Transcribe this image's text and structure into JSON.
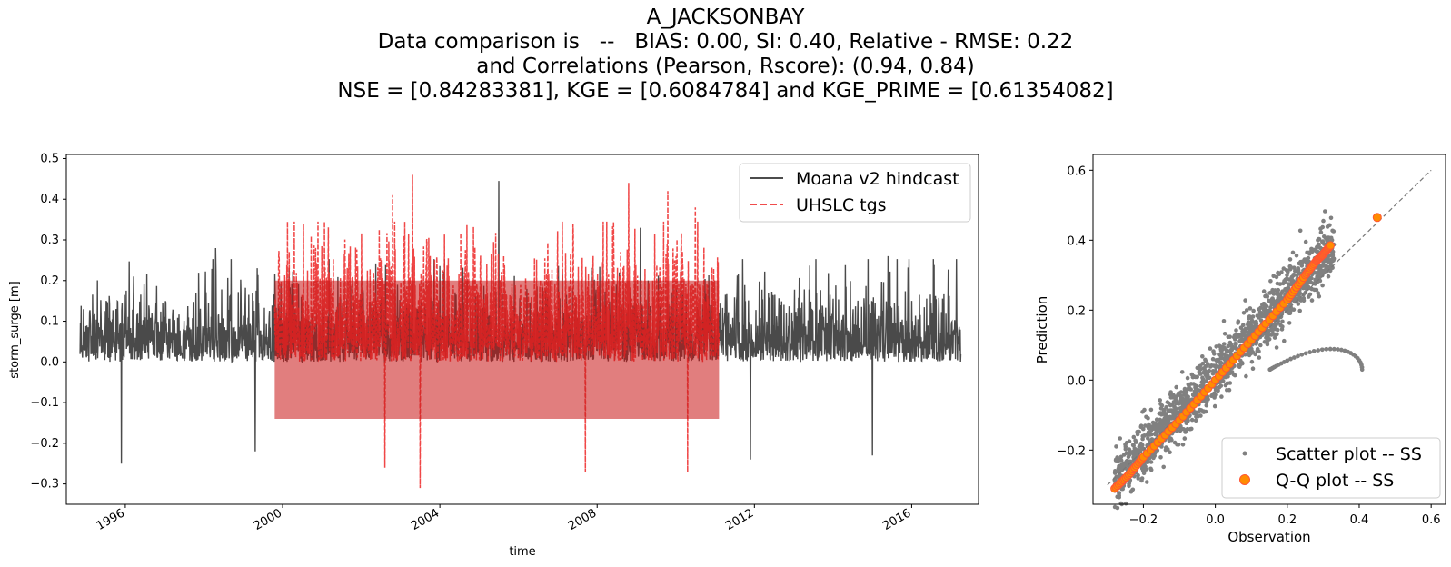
{
  "title_lines": [
    "A_JACKSONBAY",
    "Data comparison is   --   BIAS: 0.00, SI: 0.40, Relative - RMSE: 0.22",
    "and Correlations (Pearson, Rscore): (0.94, 0.84)",
    "NSE = [0.84283381], KGE = [0.6084784] and KGE_PRIME = [0.61354082]"
  ],
  "chart_data": [
    {
      "type": "line",
      "xlabel": "time",
      "ylabel": "storm_surge [m]",
      "xlim": [
        1994.5,
        2017.7
      ],
      "ylim": [
        -0.35,
        0.51
      ],
      "xticks": [
        "1996",
        "2000",
        "2004",
        "2008",
        "2012",
        "2016"
      ],
      "xtick_values": [
        1996,
        2000,
        2004,
        2008,
        2012,
        2016
      ],
      "yticks": [
        "−0.3",
        "−0.2",
        "−0.1",
        "0.0",
        "0.1",
        "0.2",
        "0.3",
        "0.4",
        "0.5"
      ],
      "ytick_values": [
        -0.3,
        -0.2,
        -0.1,
        0.0,
        0.1,
        0.2,
        0.3,
        0.4,
        0.5
      ],
      "legend_position": "top-right",
      "series": [
        {
          "name": "Moana v2 hindcast",
          "style": "solid",
          "color": "#4a4a4a",
          "x_range": [
            1994.85,
            2017.25
          ],
          "typical_range": [
            -0.14,
            0.22
          ],
          "peaks": [
            [
              1998.3,
              0.28
            ],
            [
              2005.5,
              0.445
            ],
            [
              2009.1,
              0.33
            ],
            [
              2015.4,
              0.26
            ]
          ],
          "troughs": [
            [
              1995.9,
              -0.25
            ],
            [
              1999.3,
              -0.22
            ],
            [
              2011.9,
              -0.24
            ],
            [
              2015.0,
              -0.23
            ]
          ]
        },
        {
          "name": "UHSLC tgs",
          "style": "dashed",
          "color": "#ee3333",
          "x_range": [
            1999.8,
            2011.1
          ],
          "typical_range": [
            -0.2,
            0.3
          ],
          "peaks": [
            [
              2002.8,
              0.41
            ],
            [
              2003.3,
              0.46
            ],
            [
              2008.8,
              0.44
            ],
            [
              2009.8,
              0.42
            ],
            [
              2010.5,
              0.38
            ]
          ],
          "troughs": [
            [
              2002.6,
              -0.26
            ],
            [
              2003.5,
              -0.31
            ],
            [
              2007.7,
              -0.27
            ],
            [
              2010.3,
              -0.27
            ]
          ]
        }
      ]
    },
    {
      "type": "scatter",
      "xlabel": "Observation",
      "ylabel": "Prediction",
      "xlim": [
        -0.34,
        0.64
      ],
      "ylim": [
        -0.355,
        0.645
      ],
      "xticks": [
        "−0.2",
        "0.0",
        "0.2",
        "0.4",
        "0.6"
      ],
      "xtick_values": [
        -0.2,
        0.0,
        0.2,
        0.4,
        0.6
      ],
      "yticks": [
        "−0.2",
        "0.0",
        "0.2",
        "0.4",
        "0.6"
      ],
      "ytick_values": [
        -0.2,
        0.0,
        0.2,
        0.4,
        0.6
      ],
      "reference_line": [
        [
          -0.3,
          -0.3
        ],
        [
          0.6,
          0.6
        ]
      ],
      "legend_position": "bottom-right",
      "series": [
        {
          "name": "Scatter plot -- SS",
          "color": "#808080",
          "cloud": {
            "x_range": [
              -0.28,
              0.33
            ],
            "spread": 0.07
          },
          "loop": {
            "center": [
              0.28,
              0.03
            ],
            "extent": [
              [
                0.18,
                0.45
              ],
              [
                -0.05,
                0.12
              ]
            ]
          }
        },
        {
          "name": "Q-Q plot -- SS",
          "color": "#ff8c00",
          "points": [
            [
              -0.28,
              -0.31
            ],
            [
              -0.24,
              -0.27
            ],
            [
              -0.2,
              -0.22
            ],
            [
              -0.1,
              -0.115
            ],
            [
              0.0,
              0.0
            ],
            [
              0.1,
              0.115
            ],
            [
              0.2,
              0.23
            ],
            [
              0.25,
              0.3
            ],
            [
              0.28,
              0.34
            ],
            [
              0.3,
              0.36
            ],
            [
              0.32,
              0.385
            ],
            [
              0.45,
              0.465
            ]
          ]
        }
      ]
    }
  ]
}
